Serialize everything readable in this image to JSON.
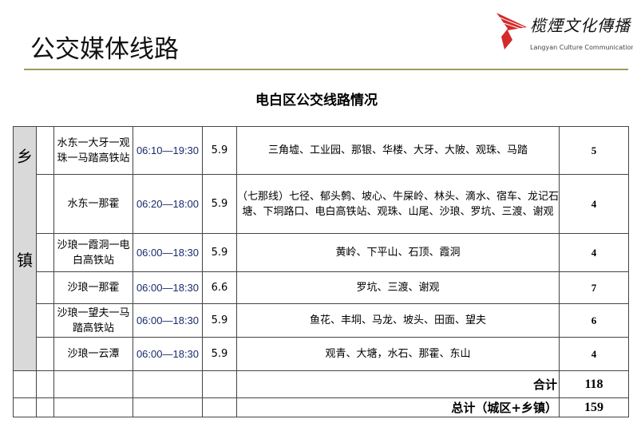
{
  "header": {
    "title": "公交媒体线路",
    "logo_cn": "榄煙文化傳播",
    "logo_en": "Langyan Culture Communication",
    "accent": "#d42a2a",
    "rule_color": "#a39a5e"
  },
  "subtitle": "电白区公交线路情况",
  "side_label": [
    "乡",
    "镇"
  ],
  "rows": [
    {
      "route": "水东一大牙一观珠一马踏高铁站",
      "time": "06:10—19:30",
      "price": "5.9",
      "stops": "三角墟、工业园、那银、华楼、大牙、大陂、观珠、马踏",
      "count": "5"
    },
    {
      "route": "水东一那霍",
      "time": "06:20—18:00",
      "price": "5.9",
      "stops": "（七那线）七径、郁头鹩、坡心、牛屎岭、林头、滴水、宿车、龙记石塘、下垌路口、电白高铁站、观珠、山尾、沙琅、罗坑、三渡、谢观",
      "count": "4"
    },
    {
      "route": "沙琅一霞洞一电白高铁站",
      "time": "06:00—18:30",
      "price": "5.9",
      "stops": "黄岭、下平山、石顶、霞洞",
      "count": "4"
    },
    {
      "route": "沙琅一那霍",
      "time": "06:00—18:30",
      "price": "6.6",
      "stops": "罗坑、三渡、谢观",
      "count": "7"
    },
    {
      "route": "沙琅一望夫一马踏高铁站",
      "time": "06:00—18:30",
      "price": "5.9",
      "stops": "鱼花、丰垌、马龙、坡头、田面、望夫",
      "count": "6"
    },
    {
      "route": "沙琅一云潭",
      "time": "06:00—18:30",
      "price": "5.9",
      "stops": "观青、大塘，水石、那霍、东山",
      "count": "4"
    }
  ],
  "subtotal": {
    "label": "合计",
    "value": "118"
  },
  "total": {
    "label": "总计（城区+乡镇）",
    "value": "159"
  }
}
